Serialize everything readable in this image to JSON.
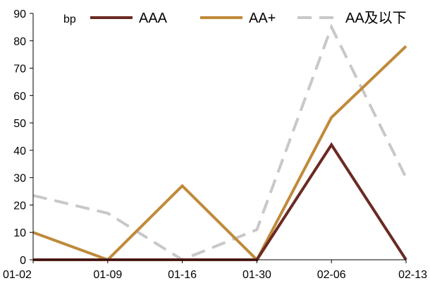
{
  "chart_data": {
    "type": "line",
    "unit": "bp",
    "categories": [
      "01-02",
      "01-09",
      "01-16",
      "01-30",
      "02-06",
      "02-13"
    ],
    "ylim": [
      0,
      90
    ],
    "yticks": [
      0,
      10,
      20,
      30,
      40,
      50,
      60,
      70,
      80,
      90
    ],
    "grid": false,
    "legend_position": "top",
    "series": [
      {
        "name": "AAA",
        "values": [
          0,
          0,
          0,
          0,
          42,
          0
        ],
        "color": "#6b2a24",
        "dash": "solid"
      },
      {
        "name": "AA+",
        "values": [
          10,
          0,
          27,
          0,
          52,
          78
        ],
        "color": "#c08a3a",
        "dash": "solid"
      },
      {
        "name": "AA及以下",
        "values": [
          23.5,
          17,
          0,
          11,
          85,
          30
        ],
        "color": "#c8c8c8",
        "dash": "dashed"
      }
    ]
  }
}
